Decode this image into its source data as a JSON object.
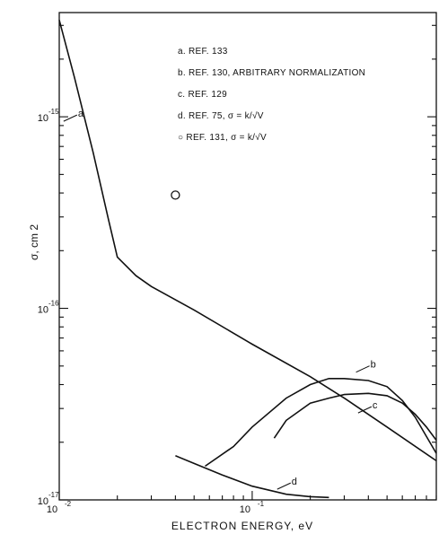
{
  "chart_data": {
    "type": "line",
    "xlabel": "ELECTRON ENERGY, eV",
    "ylabel": "σ, cm 2",
    "xscale": "log",
    "yscale": "log",
    "xlim": [
      0.01,
      0.9
    ],
    "ylim": [
      1e-17,
      3.5e-15
    ],
    "x_ticks": [
      {
        "value": 0.01,
        "mantissa": "10",
        "exp": "-2"
      },
      {
        "value": 0.1,
        "mantissa": "10",
        "exp": "-1"
      }
    ],
    "y_ticks": [
      {
        "value": 1e-17,
        "mantissa": "10",
        "exp": "-17"
      },
      {
        "value": 1e-16,
        "mantissa": "10",
        "exp": "-16"
      },
      {
        "value": 1e-15,
        "mantissa": "10",
        "exp": "-15"
      }
    ],
    "legend": [
      "a. REF. 133",
      "b. REF. 130, ARBITRARY NORMALIZATION",
      "c. REF. 129",
      "d. REF. 75, σ = k/√V",
      "○ REF. 131, σ = k/√V"
    ],
    "series": [
      {
        "name": "a",
        "x": [
          0.01,
          0.012,
          0.015,
          0.018,
          0.02,
          0.025,
          0.03,
          0.05,
          0.1,
          0.2,
          0.3,
          0.5,
          0.9
        ],
        "y": [
          3.2e-15,
          1.6e-15,
          6.5e-16,
          2.9e-16,
          1.85e-16,
          1.48e-16,
          1.3e-16,
          9.8e-17,
          6.5e-17,
          4.4e-17,
          3.4e-17,
          2.4e-17,
          1.6e-17
        ]
      },
      {
        "name": "b",
        "x": [
          0.057,
          0.08,
          0.1,
          0.15,
          0.2,
          0.25,
          0.3,
          0.4,
          0.5,
          0.6,
          0.7,
          0.9
        ],
        "y": [
          1.5e-17,
          1.9e-17,
          2.4e-17,
          3.4e-17,
          4e-17,
          4.3e-17,
          4.3e-17,
          4.2e-17,
          3.9e-17,
          3.3e-17,
          2.7e-17,
          1.75e-17
        ]
      },
      {
        "name": "c",
        "x": [
          0.13,
          0.15,
          0.2,
          0.25,
          0.3,
          0.4,
          0.5,
          0.6,
          0.7,
          0.8,
          0.9
        ],
        "y": [
          2.1e-17,
          2.6e-17,
          3.2e-17,
          3.4e-17,
          3.55e-17,
          3.6e-17,
          3.5e-17,
          3.2e-17,
          2.8e-17,
          2.4e-17,
          2.05e-17
        ]
      },
      {
        "name": "d",
        "x": [
          0.04,
          0.05,
          0.07,
          0.1,
          0.15,
          0.2,
          0.25
        ],
        "y": [
          1.7e-17,
          1.55e-17,
          1.35e-17,
          1.18e-17,
          1.07e-17,
          1.04e-17,
          1.03e-17
        ]
      },
      {
        "name": "REF. 131",
        "type": "scatter",
        "x": [
          0.04
        ],
        "y": [
          3.9e-16
        ]
      }
    ],
    "curve_labels": [
      {
        "text": "a",
        "x": 0.0125,
        "y": 1e-15
      },
      {
        "text": "b",
        "x": 0.41,
        "y": 4.9e-17
      },
      {
        "text": "c",
        "x": 0.42,
        "y": 3e-17
      },
      {
        "text": "d",
        "x": 0.16,
        "y": 1.2e-17
      }
    ]
  }
}
